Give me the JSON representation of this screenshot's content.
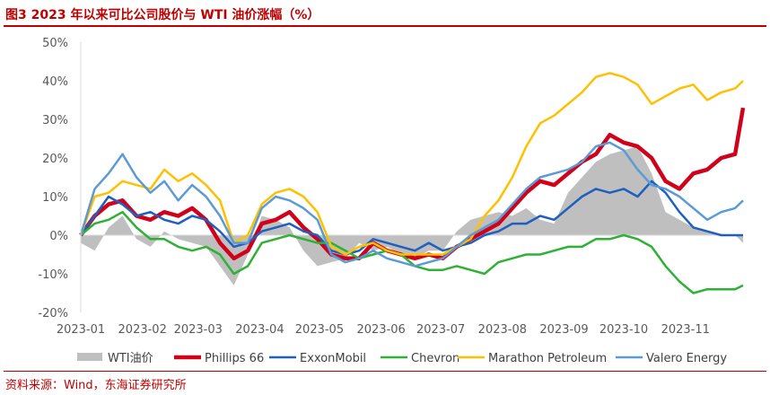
{
  "header": {
    "title": "图3  2023 年以来可比公司股价与 WTI 油价涨幅（%）"
  },
  "footer": {
    "source": "资料来源：Wind，东海证券研究所"
  },
  "chart_data": {
    "type": "line",
    "title": "图3  2023 年以来可比公司股价与 WTI 油价涨幅（%）",
    "xlabel": "",
    "ylabel": "",
    "x_ticks": [
      "2023-01",
      "2023-02",
      "2023-03",
      "2023-04",
      "2023-05",
      "2023-06",
      "2023-07",
      "2023-08",
      "2023-09",
      "2023-10",
      "2023-11"
    ],
    "y_ticks": [
      "50%",
      "40%",
      "30%",
      "20%",
      "10%",
      "0%",
      "-10%",
      "-20%"
    ],
    "ylim": [
      -20,
      50
    ],
    "xlim": [
      "2023-01-01",
      "2023-11-30"
    ],
    "grid": false,
    "legend_position": "bottom",
    "sample_dates": [
      "2023-01-01",
      "2023-01-08",
      "2023-01-15",
      "2023-01-22",
      "2023-01-29",
      "2023-02-05",
      "2023-02-12",
      "2023-02-19",
      "2023-02-26",
      "2023-03-05",
      "2023-03-12",
      "2023-03-19",
      "2023-03-26",
      "2023-04-02",
      "2023-04-09",
      "2023-04-16",
      "2023-04-23",
      "2023-04-30",
      "2023-05-07",
      "2023-05-14",
      "2023-05-21",
      "2023-05-28",
      "2023-06-04",
      "2023-06-11",
      "2023-06-18",
      "2023-06-25",
      "2023-07-02",
      "2023-07-09",
      "2023-07-16",
      "2023-07-23",
      "2023-07-30",
      "2023-08-06",
      "2023-08-13",
      "2023-08-20",
      "2023-08-27",
      "2023-09-03",
      "2023-09-10",
      "2023-09-17",
      "2023-09-24",
      "2023-10-01",
      "2023-10-08",
      "2023-10-15",
      "2023-10-22",
      "2023-10-29",
      "2023-11-05",
      "2023-11-12",
      "2023-11-19",
      "2023-11-26",
      "2023-11-30"
    ],
    "series": [
      {
        "name": "WTI油价",
        "style": "area",
        "color": "#bfbfbf",
        "values": [
          -2,
          -4,
          2,
          5,
          -1,
          -3,
          1,
          -1,
          -2,
          -3,
          -8,
          -13,
          -5,
          5,
          4,
          2,
          -4,
          -8,
          -7,
          -6,
          -2,
          -4,
          -3,
          -5,
          -6,
          -4,
          -4,
          1,
          4,
          5,
          6,
          5,
          7,
          4,
          3,
          11,
          15,
          19,
          21,
          22,
          23,
          16,
          6,
          4,
          2,
          1,
          0,
          0,
          -2
        ]
      },
      {
        "name": "Phillips 66",
        "style": "line",
        "color": "#d0021b",
        "values": [
          0,
          5,
          8,
          9,
          5,
          4,
          6,
          5,
          7,
          4,
          -2,
          -6,
          -4,
          3,
          4,
          6,
          2,
          -1,
          -5,
          -6,
          -6,
          -2,
          -4,
          -5,
          -6,
          -5,
          -6,
          -3,
          -1,
          1,
          3,
          7,
          11,
          14,
          13,
          16,
          19,
          21,
          26,
          24,
          23,
          20,
          14,
          12,
          16,
          17,
          20,
          21,
          33
        ]
      },
      {
        "name": "ExxonMobil",
        "style": "line",
        "color": "#1f5fbf",
        "values": [
          0,
          5,
          10,
          8,
          5,
          6,
          4,
          3,
          5,
          4,
          1,
          -3,
          -2,
          1,
          2,
          3,
          1,
          0,
          -4,
          -5,
          -4,
          -1,
          -2,
          -3,
          -4,
          -2,
          -4,
          -3,
          -2,
          0,
          1,
          3,
          3,
          5,
          4,
          7,
          10,
          12,
          11,
          12,
          10,
          14,
          11,
          6,
          2,
          1,
          0,
          0,
          0
        ]
      },
      {
        "name": "Chevron",
        "style": "line",
        "color": "#2eb135",
        "values": [
          0,
          3,
          4,
          6,
          2,
          -1,
          -1,
          -3,
          -4,
          -3,
          -5,
          -10,
          -8,
          -2,
          -1,
          0,
          -1,
          -2,
          -2,
          -4,
          -6,
          -5,
          -4,
          -5,
          -8,
          -9,
          -9,
          -8,
          -9,
          -10,
          -7,
          -6,
          -5,
          -5,
          -4,
          -3,
          -3,
          -1,
          -1,
          0,
          -1,
          -3,
          -8,
          -12,
          -15,
          -14,
          -14,
          -14,
          -13
        ]
      },
      {
        "name": "Marathon Petroleum",
        "style": "line",
        "color": "#ffc000",
        "values": [
          0,
          10,
          11,
          14,
          13,
          12,
          17,
          14,
          16,
          13,
          9,
          -2,
          0,
          8,
          11,
          12,
          10,
          6,
          -3,
          -5,
          -3,
          -2,
          -4,
          -5,
          -5,
          -5,
          -5,
          -3,
          -1,
          5,
          9,
          15,
          23,
          29,
          31,
          34,
          37,
          41,
          42,
          41,
          39,
          34,
          36,
          38,
          39,
          35,
          37,
          38,
          40
        ]
      },
      {
        "name": "Valero Energy",
        "style": "line",
        "color": "#5b9bd5",
        "values": [
          0,
          12,
          16,
          21,
          15,
          11,
          14,
          9,
          13,
          10,
          5,
          -2,
          -2,
          7,
          10,
          9,
          7,
          4,
          -5,
          -7,
          -6,
          -4,
          -6,
          -7,
          -8,
          -7,
          -6,
          -3,
          0,
          2,
          4,
          8,
          12,
          15,
          16,
          17,
          19,
          23,
          24,
          22,
          17,
          13,
          12,
          10,
          7,
          4,
          6,
          7,
          9
        ]
      }
    ]
  }
}
